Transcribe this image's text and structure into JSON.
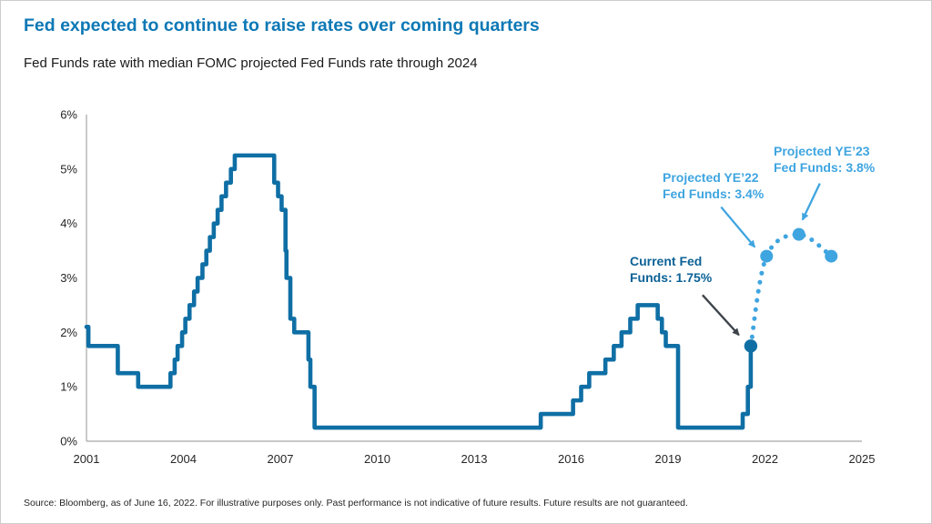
{
  "header": {
    "title": "Fed expected to continue to raise rates over coming quarters",
    "subtitle": "Fed Funds rate with median FOMC projected Fed Funds rate through 2024"
  },
  "footer": {
    "source": "Source: Bloomberg, as of June 16, 2022. For illustrative purposes only. Past performance is not indicative of future results. Future results are not guaranteed."
  },
  "colors": {
    "title_blue": "#0d78b5",
    "line_blue": "#0f6fa5",
    "projection_blue": "#3fa5e0",
    "annotation_dark_blue": "#0c6296",
    "arrow_gray": "#3d4349",
    "axis_gray": "#a6a6a6",
    "text_dark": "#1a1a1a"
  },
  "chart_data": {
    "type": "line",
    "title": "Fed expected to continue to raise rates over coming quarters",
    "subtitle": "Fed Funds rate with median FOMC projected Fed Funds rate through 2024",
    "grid": false,
    "legend": "none",
    "x_axis": {
      "tick_labels": [
        "2001",
        "2004",
        "2007",
        "2010",
        "2013",
        "2016",
        "2019",
        "2022",
        "2025"
      ],
      "min": 2001.9,
      "max": 2025.9,
      "label_offset": 0.9
    },
    "y_axis": {
      "tick_labels": [
        "6%",
        "5%",
        "4%",
        "3%",
        "2%",
        "1%",
        "0%"
      ],
      "min": 0,
      "max": 6
    },
    "series": [
      {
        "name": "Fed Funds rate",
        "style": "solid-step",
        "points": [
          [
            2001.9,
            2.1
          ],
          [
            2001.96,
            1.75
          ],
          [
            2002.87,
            1.25
          ],
          [
            2003.5,
            1.0
          ],
          [
            2004.5,
            1.25
          ],
          [
            2004.63,
            1.5
          ],
          [
            2004.72,
            1.75
          ],
          [
            2004.86,
            2.0
          ],
          [
            2004.96,
            2.25
          ],
          [
            2005.09,
            2.5
          ],
          [
            2005.23,
            2.75
          ],
          [
            2005.34,
            3.0
          ],
          [
            2005.49,
            3.25
          ],
          [
            2005.61,
            3.5
          ],
          [
            2005.72,
            3.75
          ],
          [
            2005.84,
            4.0
          ],
          [
            2005.96,
            4.25
          ],
          [
            2006.08,
            4.5
          ],
          [
            2006.22,
            4.75
          ],
          [
            2006.37,
            5.0
          ],
          [
            2006.49,
            5.25
          ],
          [
            2007.71,
            4.75
          ],
          [
            2007.83,
            4.5
          ],
          [
            2007.94,
            4.25
          ],
          [
            2008.06,
            3.5
          ],
          [
            2008.09,
            3.0
          ],
          [
            2008.21,
            2.25
          ],
          [
            2008.33,
            2.0
          ],
          [
            2008.77,
            1.5
          ],
          [
            2008.83,
            1.0
          ],
          [
            2008.96,
            0.25
          ],
          [
            2015.96,
            0.5
          ],
          [
            2016.96,
            0.75
          ],
          [
            2017.21,
            1.0
          ],
          [
            2017.46,
            1.25
          ],
          [
            2017.96,
            1.5
          ],
          [
            2018.22,
            1.75
          ],
          [
            2018.46,
            2.0
          ],
          [
            2018.73,
            2.25
          ],
          [
            2018.96,
            2.5
          ],
          [
            2019.58,
            2.25
          ],
          [
            2019.71,
            2.0
          ],
          [
            2019.83,
            1.75
          ],
          [
            2020.21,
            0.25
          ],
          [
            2022.21,
            0.5
          ],
          [
            2022.37,
            1.0
          ],
          [
            2022.46,
            1.75
          ]
        ]
      },
      {
        "name": "Median FOMC projected Fed Funds rate",
        "style": "dotted",
        "points": [
          [
            2022.46,
            1.75
          ],
          [
            2022.95,
            3.4
          ],
          [
            2023.95,
            3.8
          ],
          [
            2024.95,
            3.4
          ]
        ]
      }
    ],
    "markers": {
      "current": {
        "x": 2022.46,
        "y": 1.75
      },
      "ye22": {
        "x": 2022.95,
        "y": 3.4
      },
      "ye23": {
        "x": 2023.95,
        "y": 3.8
      },
      "ye24": {
        "x": 2024.95,
        "y": 3.4
      }
    },
    "annotations": [
      {
        "id": "current",
        "line1": "Current Fed",
        "line2": "Funds: 1.75%"
      },
      {
        "id": "ye22",
        "line1": "Projected YE’22",
        "line2": "Fed Funds: 3.4%"
      },
      {
        "id": "ye23",
        "line1": "Projected YE’23",
        "line2": "Fed Funds: 3.8%"
      }
    ]
  }
}
